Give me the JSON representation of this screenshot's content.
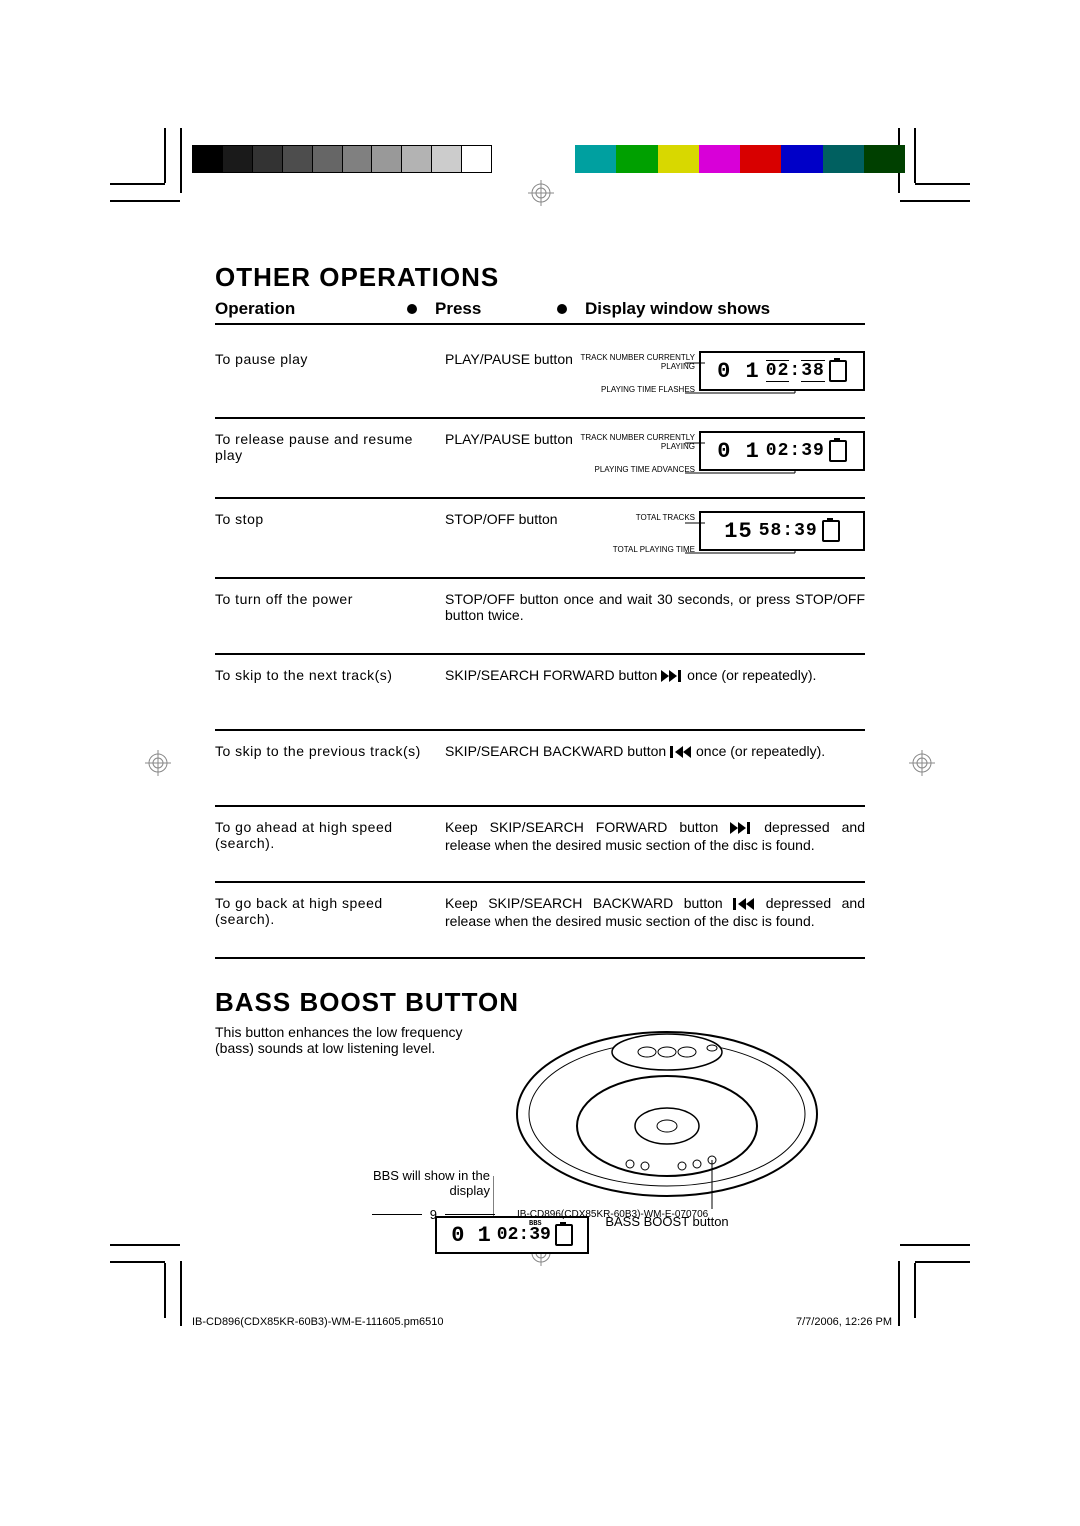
{
  "colorbar_left": [
    "#000000",
    "#1a1a1a",
    "#333333",
    "#4d4d4d",
    "#666666",
    "#808080",
    "#999999",
    "#b3b3b3",
    "#cccccc",
    "#ffffff"
  ],
  "colorbar_right": [
    "#00a0a0",
    "#00a000",
    "#d8d800",
    "#d800d8",
    "#d80000",
    "#0000c8",
    "#006060",
    "#004000"
  ],
  "title_ops": "OTHER OPERATIONS",
  "header": {
    "c1": "Operation",
    "c2": "Press",
    "c3": "Display window shows"
  },
  "rows": [
    {
      "op": "To pause play",
      "press": "PLAY/PAUSE button",
      "lcd": {
        "track": "0 1",
        "time": "02:38",
        "flash": true
      },
      "labels": {
        "a": "TRACK NUMBER CURRENTLY PLAYING",
        "b": "PLAYING TIME FLASHES"
      }
    },
    {
      "op": "To release pause and resume play",
      "press": "PLAY/PAUSE button",
      "lcd": {
        "track": "0 1",
        "time": "02:39",
        "flash": false
      },
      "labels": {
        "a": "TRACK NUMBER CURRENTLY PLAYING",
        "b": "PLAYING TIME ADVANCES"
      }
    },
    {
      "op": "To stop",
      "press": "STOP/OFF button",
      "lcd": {
        "track": "15",
        "time": "58:39",
        "flash": false
      },
      "labels": {
        "a": "TOTAL TRACKS",
        "b": "TOTAL PLAYING TIME"
      }
    },
    {
      "op": "To turn off the power",
      "text": "STOP/OFF button once and wait 30 seconds, or press STOP/OFF button twice."
    },
    {
      "op": "To skip to the next track(s)",
      "text": "SKIP/SEARCH FORWARD button {FWD} once (or repeatedly)."
    },
    {
      "op": "To skip to the previous track(s)",
      "text": "SKIP/SEARCH BACKWARD button {BACK} once (or repeatedly)."
    },
    {
      "op": "To go ahead at high speed (search).",
      "text": "Keep SKIP/SEARCH FORWARD button {FWD} depressed and release when the desired music section of the disc is found."
    },
    {
      "op": "To go back at high speed (search).",
      "text": "Keep SKIP/SEARCH BACKWARD button {BACK} depressed and release when the desired music section of the disc is found."
    }
  ],
  "title_bass": "BASS BOOST BUTTON",
  "bass_text": "This button enhances the low frequency (bass) sounds at low listening level.",
  "bbs_label1": "BBS will show in the display",
  "bbs_label2": "BASS BOOST button",
  "bass_lcd": {
    "track": "0 1",
    "time": "02:39",
    "bbs": "BBS"
  },
  "page_number": "9",
  "doc_id": "IB-CD896(CDX85KR-60B3)-WM-E-070706",
  "doc_footer_left": "IB-CD896(CDX85KR-60B3)-WM-E-111605.pm6510",
  "doc_footer_right": "7/7/2006, 12:26 PM"
}
